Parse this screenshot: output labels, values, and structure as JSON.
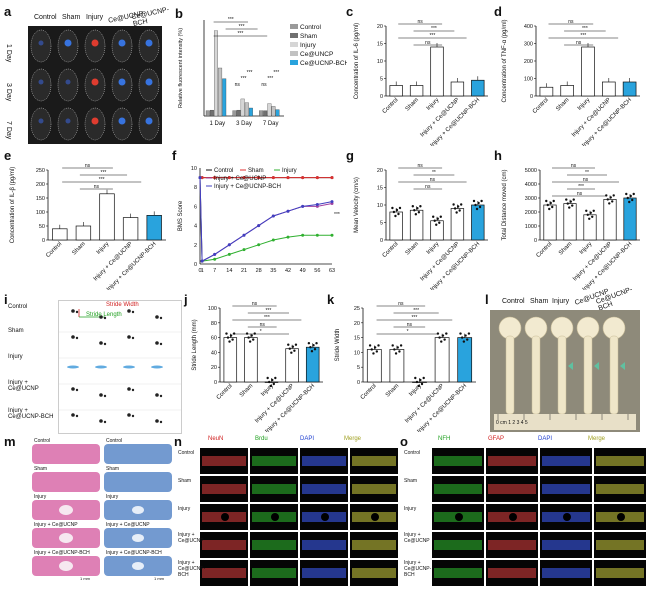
{
  "panel_labels": [
    "a",
    "b",
    "c",
    "d",
    "e",
    "f",
    "g",
    "h",
    "i",
    "j",
    "k",
    "l",
    "m",
    "n",
    "o"
  ],
  "groups": [
    "Control",
    "Sham",
    "Injury",
    "Ce@UCNP",
    "Ce@UCNP-BCH"
  ],
  "panel_a": {
    "days": [
      "1 Day",
      "3 Day",
      "7 Day"
    ]
  },
  "panel_i": {
    "rows": [
      "Control",
      "Sham",
      "Injury",
      "Injury + Ce@UCNP",
      "Injury + Ce@UCNP-BCH"
    ],
    "stride_width": "Stride Width",
    "stride_length": "Stride Length"
  },
  "panel_l": {
    "groups": [
      "Control",
      "Sham",
      "Injury",
      "Ce@UCNP",
      "Ce@UCNP-BCH"
    ],
    "ruler": "0 cm 1 2 3 4 5"
  },
  "panel_m": {
    "left": [
      "Control",
      "Sham",
      "Injury",
      "Injury + Ce@UCNP",
      "Injury + Ce@UCNP-BCH"
    ],
    "right": [
      "Control",
      "Sham",
      "Injury",
      "Injury + Ce@UCNP",
      "Injury + Ce@UCNP-BCH"
    ],
    "scale": "1 mm"
  },
  "panel_n": {
    "channels": [
      "NeuN",
      "Brdu",
      "DAPI",
      "Merge"
    ],
    "rows": [
      "Control",
      "Sham",
      "Injury",
      "Injury + Ce@UCNP",
      "Injury + Ce@UCNP-BCH"
    ],
    "channel_colors": [
      "#e04040",
      "#30c030",
      "#4060ff",
      "#d0d040"
    ]
  },
  "panel_o": {
    "channels": [
      "NFH",
      "GFAP",
      "DAPI",
      "Merge"
    ],
    "rows": [
      "Control",
      "Sham",
      "Injury",
      "Injury + Ce@UCNP",
      "Injury + Ce@UCNP-BCH"
    ],
    "channel_colors": [
      "#30c030",
      "#e04040",
      "#4060ff",
      "#d0d040"
    ]
  },
  "chart_data": [
    {
      "id": "b",
      "type": "bar",
      "ylabel": "Relative fluorescent intensity (%)",
      "categories": [
        "1 Day",
        "3 Day",
        "7 Day"
      ],
      "series": [
        {
          "name": "Control",
          "color": "#9a9a9a",
          "values": [
            100,
            100,
            100
          ]
        },
        {
          "name": "Sham",
          "color": "#707070",
          "values": [
            110,
            110,
            100
          ]
        },
        {
          "name": "Injury",
          "color": "#d6d6d6",
          "values": [
            1600,
            320,
            230
          ]
        },
        {
          "name": "Ce@UNCP",
          "color": "#c2c2c2",
          "values": [
            900,
            250,
            180
          ]
        },
        {
          "name": "Ce@UCNP-BCH",
          "color": "#29a3dd",
          "values": [
            700,
            150,
            120
          ]
        }
      ],
      "sig": [
        "***",
        "***",
        "***",
        "ns",
        "***",
        "***",
        "ns",
        "***",
        "***"
      ]
    },
    {
      "id": "c",
      "type": "bar",
      "ylabel": "Concentration of IL-6 (pg/ml)",
      "categories": [
        "Control",
        "Sham",
        "Injury",
        "Injury + Ce@UCNP",
        "Injury + Ce@UCNP-BCH"
      ],
      "values": [
        3,
        3,
        14,
        4,
        4.5
      ],
      "ylim": [
        0,
        20
      ],
      "ticks": [
        0,
        5,
        10,
        15,
        20
      ],
      "sig": [
        "ns",
        "***",
        "***",
        "ns"
      ]
    },
    {
      "id": "d",
      "type": "bar",
      "ylabel": "Concentration of TNF-α (pg/ml)",
      "categories": [
        "Control",
        "Sham",
        "Injury",
        "Injury + Ce@UCNP",
        "Injury + Ce@UCNP-BCH"
      ],
      "values": [
        50,
        60,
        280,
        80,
        80
      ],
      "ylim": [
        0,
        400
      ],
      "ticks": [
        0,
        100,
        200,
        300,
        400
      ],
      "sig": [
        "ns",
        "***",
        "***",
        "ns"
      ]
    },
    {
      "id": "e",
      "type": "bar",
      "ylabel": "Concentration of IL-β (pg/ml)",
      "categories": [
        "Control",
        "Sham",
        "Injury",
        "Injury + Ce@UCNP",
        "Injury + Ce@UCNP-BCH"
      ],
      "values": [
        40,
        50,
        165,
        80,
        88
      ],
      "ylim": [
        0,
        250
      ],
      "ticks": [
        0,
        50,
        100,
        150,
        200,
        250
      ],
      "sig": [
        "ns",
        "***",
        "***",
        "ns"
      ]
    },
    {
      "id": "f",
      "type": "line",
      "ylabel": "BMS Score",
      "x": [
        0,
        1,
        7,
        14,
        21,
        28,
        35,
        42,
        49,
        56,
        63
      ],
      "ylim": [
        0,
        10
      ],
      "ticks": [
        0,
        2,
        4,
        6,
        8,
        10
      ],
      "series": [
        {
          "name": "Control",
          "color": "#111111",
          "marker": "circle",
          "values": [
            9,
            9,
            9,
            9,
            9,
            9,
            9,
            9,
            9,
            9,
            9
          ]
        },
        {
          "name": "Sham",
          "color": "#e03030",
          "marker": "circle",
          "values": [
            9,
            9,
            9,
            9,
            9,
            9,
            9,
            9,
            9,
            9,
            9
          ]
        },
        {
          "name": "Injury",
          "color": "#30b030",
          "marker": "star",
          "values": [
            9,
            0.3,
            0.5,
            1,
            1.5,
            2,
            2.5,
            2.8,
            3,
            3,
            3
          ]
        },
        {
          "name": "Injury + Ce@UCNP",
          "color": "#a040a0",
          "marker": "triangle",
          "values": [
            9,
            0.3,
            1,
            2,
            3,
            4,
            5,
            5.5,
            6,
            6,
            6.3
          ]
        },
        {
          "name": "Injury + Ce@UCNP-BCH",
          "color": "#4040c0",
          "marker": "triangle",
          "values": [
            9,
            0.3,
            1,
            2,
            3,
            4,
            5,
            5.5,
            6,
            6.2,
            6.5
          ]
        }
      ],
      "sig": [
        "***"
      ]
    },
    {
      "id": "g",
      "type": "bar",
      "ylabel": "Mean Velocity (cm/s)",
      "categories": [
        "Control",
        "Sham",
        "Injury",
        "Injury + Ce@UCNP",
        "Injury + Ce@UCNP-BCH"
      ],
      "values": [
        8,
        8.5,
        5.5,
        9,
        10
      ],
      "ylim": [
        0,
        20
      ],
      "ticks": [
        0,
        5,
        10,
        15,
        20
      ],
      "sig": [
        "ns",
        "**",
        "ns",
        "ns"
      ]
    },
    {
      "id": "h",
      "type": "bar",
      "ylabel": "Total Distance moved (cm)",
      "categories": [
        "Control",
        "Sham",
        "Injury",
        "Injury + Ce@UCNP",
        "Injury + Ce@UCNP-BCH"
      ],
      "values": [
        2500,
        2600,
        1800,
        2900,
        3000
      ],
      "ylim": [
        0,
        5000
      ],
      "ticks": [
        0,
        1000,
        2000,
        3000,
        4000,
        5000
      ],
      "sig": [
        "ns",
        "**",
        "ns",
        "***",
        "ns"
      ]
    },
    {
      "id": "j",
      "type": "bar",
      "ylabel": "Stride Length (mm)",
      "categories": [
        "Control",
        "Sham",
        "Injury",
        "Injury + Ce@UCNP",
        "Injury + Ce@UCNP-BCH"
      ],
      "values": [
        60,
        60,
        0,
        45,
        47
      ],
      "ylim": [
        0,
        100
      ],
      "ticks": [
        0,
        20,
        40,
        60,
        80,
        100
      ],
      "sig": [
        "ns",
        "***",
        "***",
        "ns",
        "*"
      ]
    },
    {
      "id": "k",
      "type": "bar",
      "ylabel": "Stride Width",
      "categories": [
        "Control",
        "Sham",
        "Injury",
        "Injury + Ce@UCNP",
        "Injury + Ce@UCNP-BCH"
      ],
      "values": [
        11,
        11,
        0,
        15,
        15
      ],
      "ylim": [
        0,
        25
      ],
      "ticks": [
        0,
        5,
        10,
        15,
        20,
        25
      ],
      "sig": [
        "ns",
        "***",
        "***",
        "ns",
        "*"
      ]
    }
  ]
}
